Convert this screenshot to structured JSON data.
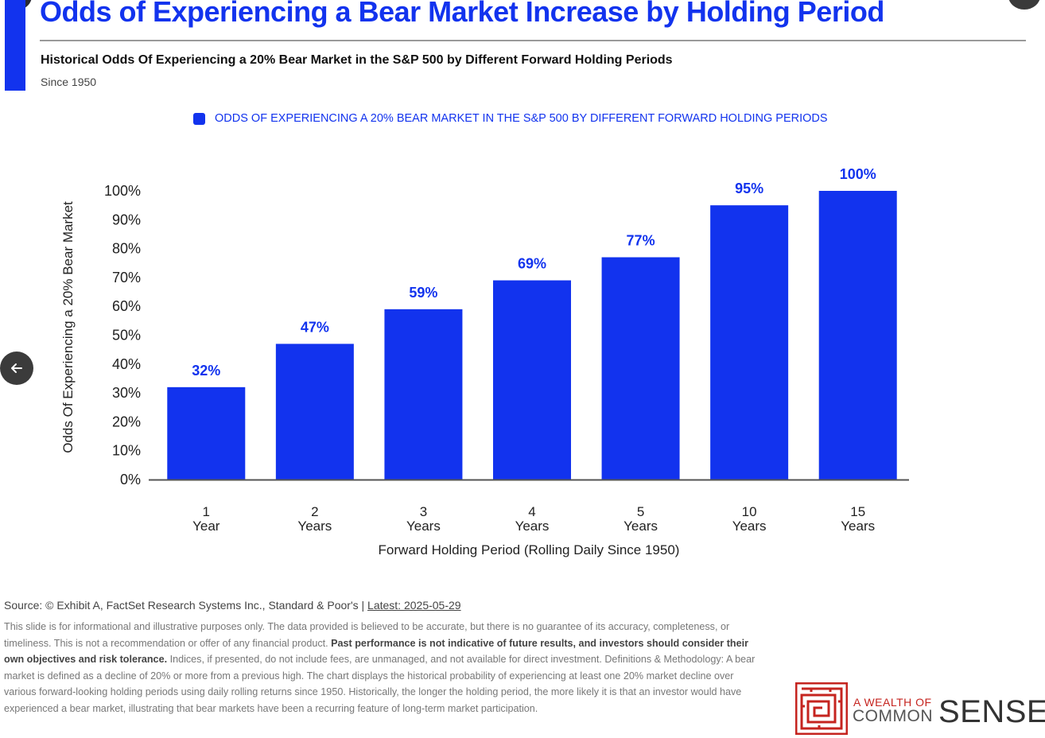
{
  "header": {
    "title": "Odds of Experiencing a Bear Market Increase by Holding Period",
    "subtitle": "Historical Odds Of Experiencing a 20% Bear Market in the S&P 500 by Different Forward Holding Periods",
    "since": "Since 1950"
  },
  "colors": {
    "accent": "#1233ee",
    "axis": "#555555",
    "text": "#222222"
  },
  "chart_data": {
    "type": "bar",
    "title": "Odds of Experiencing a Bear Market Increase by Holding Period",
    "legend": [
      "ODDS OF EXPERIENCING A 20% BEAR MARKET IN THE S&P 500 BY DIFFERENT FORWARD HOLDING PERIODS"
    ],
    "categories": [
      [
        "1",
        "Year"
      ],
      [
        "2",
        "Years"
      ],
      [
        "3",
        "Years"
      ],
      [
        "4",
        "Years"
      ],
      [
        "5",
        "Years"
      ],
      [
        "10",
        "Years"
      ],
      [
        "15",
        "Years"
      ]
    ],
    "values": [
      32,
      47,
      59,
      69,
      77,
      95,
      100
    ],
    "data_labels": [
      "32%",
      "47%",
      "59%",
      "69%",
      "77%",
      "95%",
      "100%"
    ],
    "ylim": [
      0,
      100
    ],
    "yticks": [
      "0%",
      "10%",
      "20%",
      "30%",
      "40%",
      "50%",
      "60%",
      "70%",
      "80%",
      "90%",
      "100%"
    ],
    "xlabel": "Forward Holding Period (Rolling Daily Since 1950)",
    "ylabel": "Odds Of Experiencing a 20% Bear Market",
    "grid": false
  },
  "footer": {
    "source": "Source: © Exhibit A, FactSet Research Systems Inc., Standard & Poor's | ",
    "latest": "Latest: 2025-05-29",
    "disclaimer_part1": "This slide is for informational and illustrative purposes only. The data provided is believed to be accurate, but there is no guarantee of its accuracy, completeness, or timeliness. This is not a recommendation or offer of any financial product. ",
    "disclaimer_bold": "Past performance is not indicative of future results, and investors should consider their own objectives and risk tolerance.",
    "disclaimer_part2": " Indices, if presented, do not include fees, are unmanaged, and not available for direct investment. Definitions & Methodology: A bear market is defined as a decline of 20% or more from a previous high. The chart displays the historical probability of experiencing at least one 20% market decline over various forward-looking holding periods using daily rolling returns since 1950. Historically, the longer the holding period, the more likely it is that an investor would have experienced a bear market, illustrating that bear markets have been a recurring feature of long-term market participation."
  },
  "logo": {
    "line1": "A WEALTH OF",
    "line2": "COMMON",
    "line3": "SENSE"
  },
  "nav": {
    "back_icon": "arrow-left-icon"
  }
}
